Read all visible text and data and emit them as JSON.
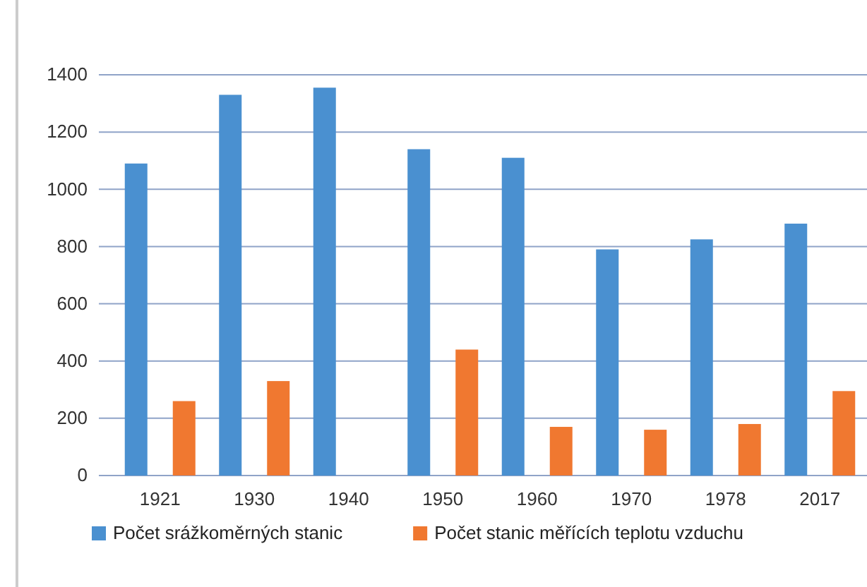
{
  "chart_data": {
    "type": "bar",
    "categories": [
      "1921",
      "1930",
      "1940",
      "1950",
      "1960",
      "1970",
      "1978",
      "2017"
    ],
    "series": [
      {
        "name": "Počet srážkoměrných stanic",
        "color": "#4a90d0",
        "values": [
          1090,
          1330,
          1355,
          1140,
          1110,
          790,
          825,
          880
        ]
      },
      {
        "name": "Počet stanic měřících teplotu vzduchu",
        "color": "#f07830",
        "values": [
          260,
          330,
          null,
          440,
          170,
          160,
          180,
          295
        ]
      }
    ],
    "ylim": [
      0,
      1400
    ],
    "yticks": [
      0,
      200,
      400,
      600,
      800,
      1000,
      1200,
      1400
    ],
    "grid": "y",
    "legend": "bottom"
  }
}
